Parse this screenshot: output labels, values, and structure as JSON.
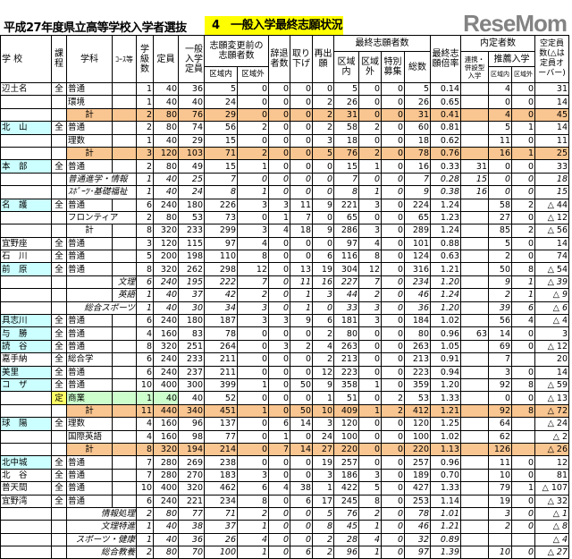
{
  "title": {
    "main": "平成27年度県立高等学校入学者選抜",
    "section": "4　一般入学最終志願状況"
  },
  "colors": {
    "section_bg": "#ffff00",
    "total_row": "#f9c590",
    "school_highlight": "#ccffff",
    "teiji": "#ffff66",
    "teiji_row": "#ccffcc"
  },
  "header": {
    "school": "学 校",
    "katei": "課程",
    "gakka": "学科",
    "course": "ｺｰｽ等",
    "classes": "学級数",
    "capacity": "定員",
    "general_capacity": "一般入学定員",
    "before_change": "志願変更前の志願者数",
    "decline": "辞退者数",
    "withdraw": "取り下げ",
    "reapply": "再出願",
    "final": "最終志願者数",
    "final_in": "区域内",
    "final_out": "区域外",
    "special": "特別募集",
    "total": "総数",
    "ratio": "最終志願倍率",
    "naitei": "内定者数",
    "renkei": "連携・併設型入学",
    "suisen": "推薦入学",
    "in": "区域内",
    "out": "区域外",
    "vacancy": "空定員数(△は定員オーバー)"
  },
  "rows": [
    {
      "school": "辺土名",
      "katei": "全",
      "gakka": "普通",
      "v": [
        "1",
        "40",
        "36",
        "5",
        "0",
        "0",
        "0",
        "0",
        "5",
        "0",
        "0",
        "5",
        "0.14",
        "",
        "4",
        "0",
        "31"
      ]
    },
    {
      "gakka": "環境",
      "v": [
        "1",
        "40",
        "40",
        "24",
        "0",
        "0",
        "0",
        "2",
        "26",
        "0",
        "0",
        "26",
        "0.65",
        "",
        "0",
        "0",
        "14"
      ]
    },
    {
      "gakka": "計",
      "total": true,
      "v": [
        "2",
        "80",
        "76",
        "29",
        "0",
        "0",
        "0",
        "2",
        "31",
        "0",
        "0",
        "31",
        "0.41",
        "",
        "4",
        "0",
        "45"
      ]
    },
    {
      "school": "北　山",
      "katei": "全",
      "gakka": "普通",
      "cyan": true,
      "v": [
        "2",
        "80",
        "74",
        "56",
        "2",
        "0",
        "0",
        "2",
        "58",
        "2",
        "0",
        "60",
        "0.81",
        "",
        "5",
        "1",
        "14"
      ]
    },
    {
      "gakka": "理数",
      "v": [
        "1",
        "40",
        "29",
        "15",
        "0",
        "0",
        "0",
        "3",
        "18",
        "0",
        "0",
        "18",
        "0.62",
        "",
        "11",
        "0",
        "11"
      ]
    },
    {
      "gakka": "計",
      "total": true,
      "v": [
        "3",
        "120",
        "103",
        "71",
        "2",
        "0",
        "0",
        "5",
        "76",
        "2",
        "0",
        "78",
        "0.76",
        "",
        "16",
        "1",
        "25"
      ]
    },
    {
      "school": "本　部",
      "katei": "全",
      "gakka": "普通",
      "cyan": true,
      "v": [
        "2",
        "80",
        "49",
        "15",
        "1",
        "0",
        "0",
        "0",
        "15",
        "1",
        "0",
        "16",
        "0.33",
        "31",
        "0",
        "0",
        "33"
      ]
    },
    {
      "gakka": "普通進学・情報",
      "span": "left",
      "it": true,
      "v": [
        "1",
        "40",
        "25",
        "7",
        "0",
        "0",
        "0",
        "0",
        "7",
        "0",
        "0",
        "7",
        "0.28",
        "15",
        "0",
        "0",
        "18"
      ]
    },
    {
      "gakka": "ｽﾎﾟｰﾂ･基礎福祉",
      "span": "left",
      "it": true,
      "v": [
        "1",
        "40",
        "24",
        "8",
        "1",
        "0",
        "0",
        "0",
        "8",
        "1",
        "0",
        "9",
        "0.38",
        "16",
        "0",
        "0",
        "15"
      ]
    },
    {
      "school": "名　護",
      "katei": "全",
      "gakka": "普通",
      "cyan": true,
      "v": [
        "6",
        "240",
        "180",
        "226",
        "3",
        "3",
        "11",
        "9",
        "221",
        "3",
        "0",
        "224",
        "1.24",
        "",
        "58",
        "2",
        "△ 44"
      ]
    },
    {
      "gakka": "フロンティア",
      "v": [
        "2",
        "80",
        "53",
        "73",
        "0",
        "1",
        "7",
        "0",
        "65",
        "0",
        "0",
        "65",
        "1.23",
        "",
        "27",
        "0",
        "△ 12"
      ]
    },
    {
      "gakka": "計",
      "center": true,
      "v": [
        "8",
        "320",
        "233",
        "299",
        "3",
        "4",
        "18",
        "9",
        "286",
        "3",
        "0",
        "289",
        "1.24",
        "",
        "85",
        "2",
        "△ 56"
      ]
    },
    {
      "school": "宜野座",
      "katei": "全",
      "gakka": "普通",
      "v": [
        "3",
        "120",
        "115",
        "97",
        "4",
        "0",
        "0",
        "0",
        "97",
        "4",
        "0",
        "101",
        "0.88",
        "",
        "5",
        "0",
        "14"
      ]
    },
    {
      "school": "石　川",
      "katei": "全",
      "gakka": "普通",
      "v": [
        "5",
        "200",
        "198",
        "110",
        "8",
        "0",
        "0",
        "6",
        "116",
        "8",
        "0",
        "124",
        "0.63",
        "",
        "2",
        "0",
        "74"
      ]
    },
    {
      "school": "前　原",
      "katei": "全",
      "gakka": "普通",
      "cyan": true,
      "v": [
        "8",
        "320",
        "262",
        "298",
        "12",
        "0",
        "13",
        "19",
        "304",
        "12",
        "0",
        "316",
        "1.21",
        "",
        "50",
        "8",
        "△ 54"
      ]
    },
    {
      "course": "文理",
      "it": true,
      "v": [
        "6",
        "240",
        "195",
        "222",
        "7",
        "0",
        "11",
        "16",
        "227",
        "7",
        "0",
        "234",
        "1.20",
        "",
        "9",
        "1",
        "△ 39"
      ]
    },
    {
      "course": "英語",
      "it": true,
      "v": [
        "1",
        "40",
        "37",
        "42",
        "2",
        "0",
        "1",
        "3",
        "44",
        "2",
        "0",
        "46",
        "1.24",
        "",
        "2",
        "1",
        "△ 9"
      ]
    },
    {
      "gakka": "総合スポーツ",
      "span": "right",
      "it": true,
      "v": [
        "1",
        "40",
        "30",
        "34",
        "3",
        "0",
        "1",
        "0",
        "33",
        "3",
        "0",
        "36",
        "1.20",
        "",
        "39",
        "6",
        "△ 6"
      ]
    },
    {
      "school": "具志川",
      "katei": "全",
      "gakka": "普通",
      "cyan": true,
      "v": [
        "6",
        "240",
        "180",
        "187",
        "3",
        "3",
        "9",
        "6",
        "181",
        "3",
        "0",
        "184",
        "1.02",
        "",
        "56",
        "4",
        "△ 4"
      ]
    },
    {
      "school": "与　勝",
      "katei": "全",
      "gakka": "普通",
      "cyan": true,
      "v": [
        "4",
        "160",
        "83",
        "78",
        "0",
        "0",
        "0",
        "2",
        "80",
        "0",
        "0",
        "80",
        "0.96",
        "63",
        "14",
        "0",
        "3"
      ]
    },
    {
      "school": "読　谷",
      "katei": "全",
      "gakka": "普通",
      "cyan": true,
      "v": [
        "8",
        "320",
        "251",
        "264",
        "0",
        "3",
        "2",
        "4",
        "263",
        "0",
        "0",
        "263",
        "1.05",
        "",
        "69",
        "0",
        "△ 12"
      ]
    },
    {
      "school": "嘉手納",
      "katei": "全",
      "gakka": "総合学",
      "v": [
        "6",
        "240",
        "233",
        "211",
        "0",
        "0",
        "0",
        "2",
        "213",
        "0",
        "0",
        "213",
        "0.91",
        "",
        "7",
        "",
        "20"
      ]
    },
    {
      "school": "美里",
      "katei": "全",
      "gakka": "普通",
      "cyan": true,
      "v": [
        "6",
        "240",
        "237",
        "211",
        "0",
        "0",
        "0",
        "12",
        "223",
        "0",
        "0",
        "223",
        "0.94",
        "",
        "3",
        "0",
        "14"
      ]
    },
    {
      "school": "コ　ザ",
      "katei": "全",
      "gakka": "普通",
      "cyan": true,
      "v": [
        "10",
        "400",
        "300",
        "399",
        "1",
        "0",
        "50",
        "9",
        "358",
        "1",
        "0",
        "359",
        "1.20",
        "",
        "92",
        "8",
        "△ 59"
      ]
    },
    {
      "katei": "定",
      "gakka": "商業",
      "teiji": true,
      "v": [
        "1",
        "40",
        "40",
        "52",
        "0",
        "0",
        "0",
        "1",
        "51",
        "0",
        "2",
        "53",
        "1.33",
        "",
        "0",
        "0",
        "△ 13"
      ]
    },
    {
      "gakka": "計",
      "total": true,
      "v": [
        "11",
        "440",
        "340",
        "451",
        "1",
        "0",
        "50",
        "10",
        "409",
        "1",
        "2",
        "412",
        "1.21",
        "",
        "92",
        "8",
        "△ 72"
      ]
    },
    {
      "school": "球　陽",
      "katei": "全",
      "gakka": "理数",
      "cyan": true,
      "v": [
        "4",
        "160",
        "96",
        "137",
        "0",
        "6",
        "14",
        "3",
        "120",
        "0",
        "0",
        "120",
        "1.25",
        "",
        "64",
        "",
        "△ 24"
      ]
    },
    {
      "gakka": "国際英語",
      "v": [
        "4",
        "160",
        "98",
        "77",
        "0",
        "1",
        "0",
        "24",
        "100",
        "0",
        "0",
        "100",
        "1.02",
        "",
        "62",
        "",
        "△ 2"
      ]
    },
    {
      "gakka": "計",
      "total": true,
      "v": [
        "8",
        "320",
        "194",
        "214",
        "0",
        "7",
        "14",
        "27",
        "220",
        "0",
        "0",
        "220",
        "1.13",
        "",
        "126",
        "",
        "△ 26"
      ]
    },
    {
      "school": "北中城",
      "katei": "全",
      "gakka": "普通",
      "cyan": true,
      "v": [
        "7",
        "280",
        "269",
        "238",
        "0",
        "0",
        "0",
        "19",
        "257",
        "0",
        "0",
        "257",
        "0.96",
        "",
        "11",
        "0",
        "12"
      ]
    },
    {
      "school": "北　谷",
      "katei": "全",
      "gakka": "普通",
      "v": [
        "7",
        "280",
        "270",
        "183",
        "3",
        "0",
        "0",
        "3",
        "186",
        "3",
        "0",
        "189",
        "0.70",
        "",
        "10",
        "0",
        "81"
      ]
    },
    {
      "school": "普天間",
      "katei": "全",
      "gakka": "普通",
      "v": [
        "10",
        "400",
        "320",
        "462",
        "6",
        "4",
        "38",
        "1",
        "422",
        "5",
        "0",
        "427",
        "1.33",
        "",
        "79",
        "1",
        "△ 107"
      ]
    },
    {
      "school": "宜野湾",
      "katei": "全",
      "gakka": "普通",
      "v": [
        "6",
        "240",
        "221",
        "234",
        "8",
        "0",
        "6",
        "17",
        "245",
        "8",
        "0",
        "253",
        "1.14",
        "",
        "19",
        "0",
        "△ 32"
      ]
    },
    {
      "gakka": "情報処理",
      "span": "right",
      "it": true,
      "v": [
        "2",
        "80",
        "77",
        "71",
        "2",
        "0",
        "0",
        "5",
        "76",
        "2",
        "0",
        "78",
        "1.01",
        "",
        "3",
        "0",
        "△ 1"
      ]
    },
    {
      "gakka": "文理特進",
      "span": "right",
      "it": true,
      "v": [
        "1",
        "40",
        "38",
        "37",
        "1",
        "0",
        "0",
        "8",
        "45",
        "1",
        "0",
        "46",
        "1.21",
        "",
        "2",
        "0",
        "△ 8"
      ]
    },
    {
      "gakka": "スポーツ・健康",
      "span": "right",
      "it": true,
      "v": [
        "1",
        "40",
        "36",
        "26",
        "4",
        "0",
        "0",
        "2",
        "28",
        "4",
        "0",
        "32",
        "0.89",
        "",
        "",
        "",
        "△ 4"
      ]
    },
    {
      "gakka": "総合教養",
      "span": "right",
      "it": true,
      "v": [
        "2",
        "80",
        "70",
        "100",
        "1",
        "0",
        "6",
        "2",
        "96",
        "1",
        "0",
        "97",
        "1.39",
        "",
        "10",
        "0",
        "△ 27"
      ]
    }
  ],
  "watermark": "ReseMom"
}
